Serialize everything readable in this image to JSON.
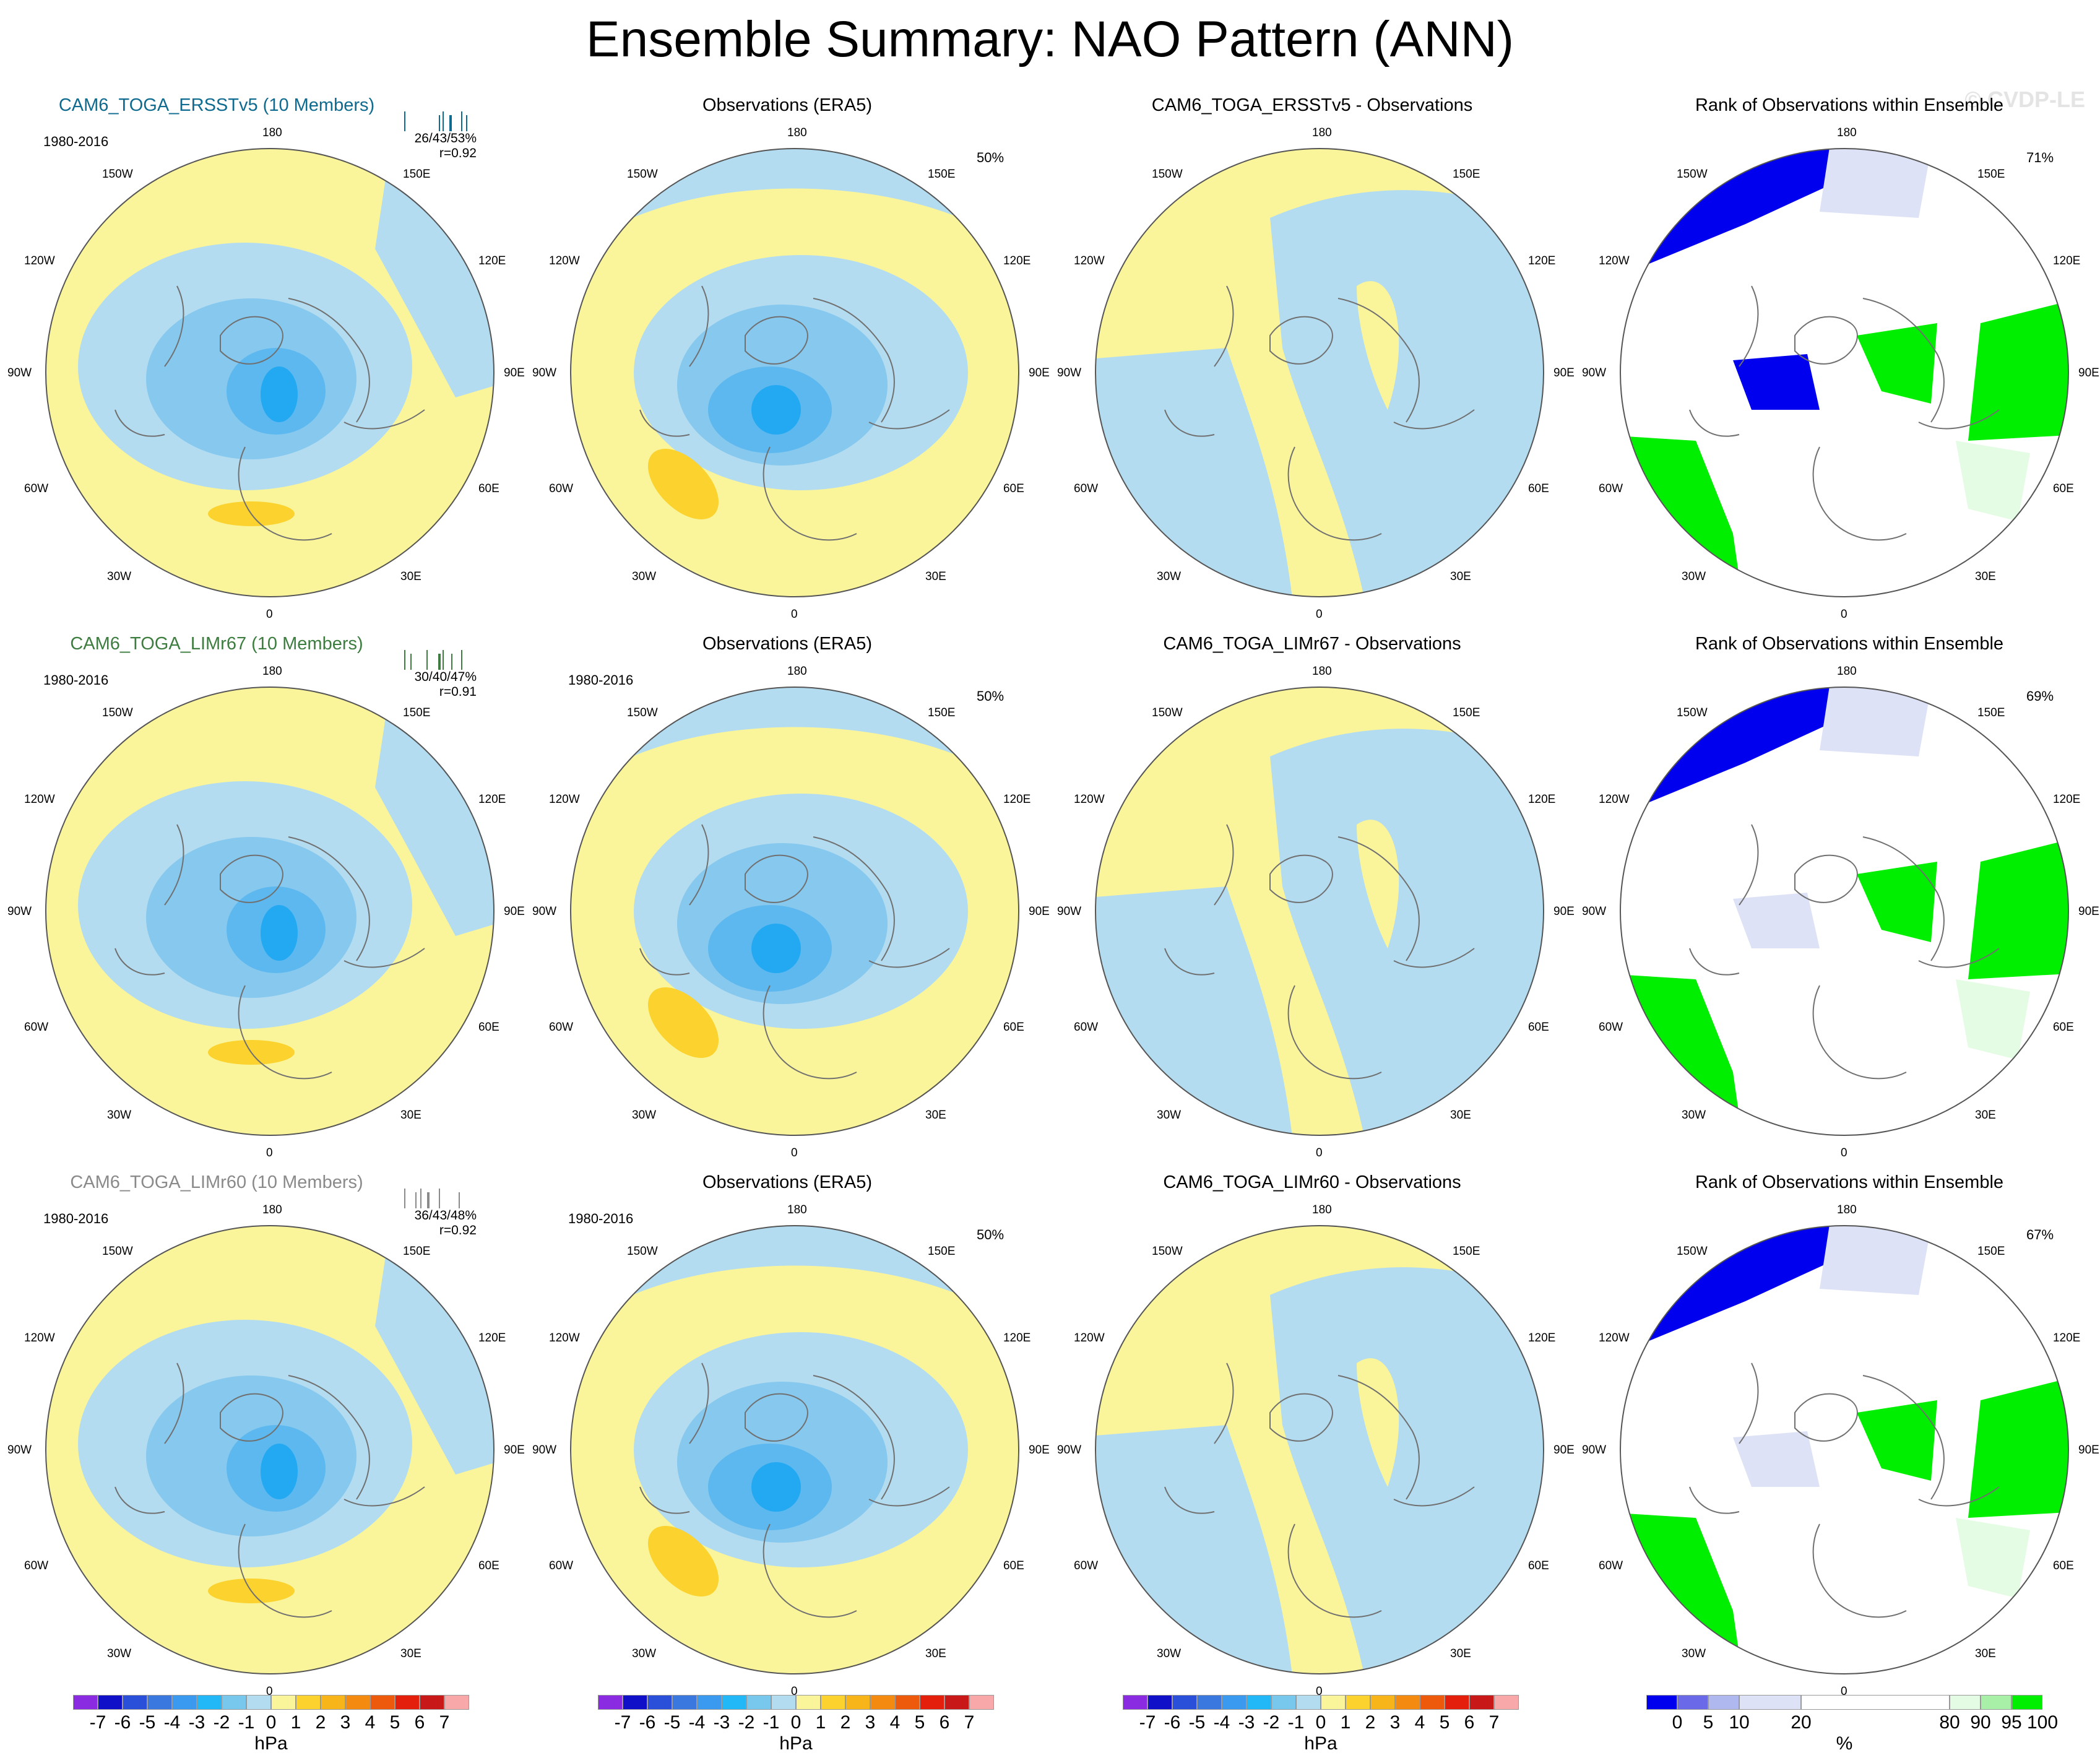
{
  "title": "Ensemble Summary: NAO Pattern (ANN)",
  "watermark": "© CVDP-LE",
  "lon_labels": {
    "top": "180",
    "bottom": "0",
    "l1": "150W",
    "l2": "120W",
    "l3": "90W",
    "l4": "60W",
    "l5": "30W",
    "r1": "150E",
    "r2": "120E",
    "r3": "90E",
    "r4": "60E",
    "r5": "30E"
  },
  "colors": {
    "model_row1": "#0e6a8f",
    "model_row2": "#3d7d3f",
    "model_row3": "#8a8a8a",
    "neg1": "#b3dcf0",
    "neg2": "#86c8ee",
    "neg3": "#5cb8ee",
    "neg4": "#23a9f2",
    "pos1": "#faf59b",
    "pos2": "#fbd22e",
    "pos3": "#f8c522",
    "rank_blue": "#0000ee",
    "rank_lav": "#dde2f6",
    "rank_green": "#00ee00",
    "rank_pale": "#e4fbe4"
  },
  "rows": [
    {
      "model_title": "CAM6_TOGA_ERSSTv5 (10 Members)",
      "period": "1980-2016",
      "stats_line1": "26/43/53%",
      "stats_line2": "r=0.92",
      "obs_title": "Observations (ERA5)",
      "obs_period": "",
      "obs_pct": "50%",
      "diff_title": "CAM6_TOGA_ERSSTv5 - Observations",
      "rank_title": "Rank of Observations within Ensemble",
      "rank_pct": "71%"
    },
    {
      "model_title": "CAM6_TOGA_LIMr67 (10 Members)",
      "period": "1980-2016",
      "stats_line1": "30/40/47%",
      "stats_line2": "r=0.91",
      "obs_title": "Observations (ERA5)",
      "obs_period": "1980-2016",
      "obs_pct": "50%",
      "diff_title": "CAM6_TOGA_LIMr67 - Observations",
      "rank_title": "Rank of Observations within Ensemble",
      "rank_pct": "69%"
    },
    {
      "model_title": "CAM6_TOGA_LIMr60 (10 Members)",
      "period": "1980-2016",
      "stats_line1": "36/43/48%",
      "stats_line2": "r=0.92",
      "obs_title": "Observations (ERA5)",
      "obs_period": "1980-2016",
      "obs_pct": "50%",
      "diff_title": "CAM6_TOGA_LIMr60 - Observations",
      "rank_title": "Rank of Observations within Ensemble",
      "rank_pct": "67%"
    }
  ],
  "colorbar_hpa": {
    "labels": [
      "-7",
      "-6",
      "-5",
      "-4",
      "-3",
      "-2",
      "-1",
      "0",
      "1",
      "2",
      "3",
      "4",
      "5",
      "6",
      "7"
    ],
    "colors": [
      "#8a2be2",
      "#1010c8",
      "#2a4fd8",
      "#3a78e0",
      "#3a9af0",
      "#22b8f8",
      "#78c8ee",
      "#b3dcf0",
      "#faf59b",
      "#fbd22e",
      "#f8b51a",
      "#f58a10",
      "#ee5a0c",
      "#e4200c",
      "#c81818",
      "#f8a8a8"
    ],
    "unit": "hPa"
  },
  "colorbar_rank": {
    "labels": [
      "0",
      "5",
      "10",
      "20",
      "80",
      "90",
      "95",
      "100"
    ],
    "colors": [
      "#0000ee",
      "#6a6ae8",
      "#b0b8f0",
      "#dde2f6",
      "#ffffff",
      "#e4fbe4",
      "#a8f0a8",
      "#00ee00"
    ],
    "unit": "%"
  }
}
